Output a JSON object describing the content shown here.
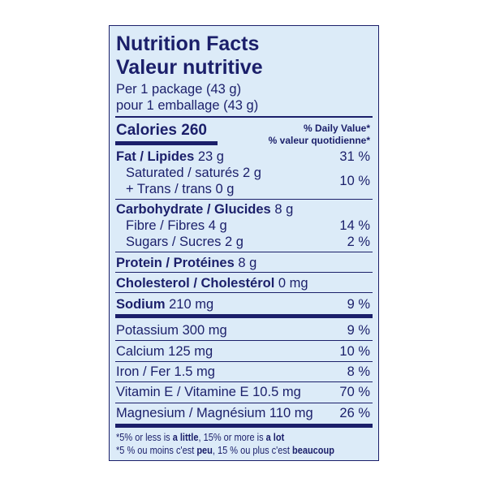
{
  "title_en": "Nutrition Facts",
  "title_fr": "Valeur nutritive",
  "serving_en": "Per 1 package (43 g)",
  "serving_fr": "pour 1 emballage (43 g)",
  "calories_label": "Calories 260",
  "dv_en": "% Daily Value*",
  "dv_fr": "% valeur quotidienne*",
  "fat": {
    "label": "Fat / Lipides",
    "amount": "23 g",
    "dv": "31 %"
  },
  "saturated": {
    "label": "Saturated / saturés 2 g"
  },
  "trans": {
    "label": "+ Trans / trans 0 g"
  },
  "sat_trans_dv": "10 %",
  "carb": {
    "label": "Carbohydrate / Glucides",
    "amount": "8 g"
  },
  "fibre": {
    "label": "Fibre / Fibres 4 g",
    "dv": "14 %"
  },
  "sugars": {
    "label": "Sugars / Sucres 2 g",
    "dv": "2 %"
  },
  "protein": {
    "label": "Protein / Protéines",
    "amount": "8 g"
  },
  "cholesterol": {
    "label": "Cholesterol / Cholestérol",
    "amount": "0 mg"
  },
  "sodium": {
    "label": "Sodium",
    "amount": "210 mg",
    "dv": "9 %"
  },
  "potassium": {
    "label": "Potassium 300 mg",
    "dv": "9 %"
  },
  "calcium": {
    "label": "Calcium 125 mg",
    "dv": "10 %"
  },
  "iron": {
    "label": "Iron / Fer 1.5 mg",
    "dv": "8 %"
  },
  "vitamin_e": {
    "label": "Vitamin E / Vitamine E 10.5 mg",
    "dv": "70 %"
  },
  "magnesium": {
    "label": "Magnesium / Magnésium 110 mg",
    "dv": "26 %"
  },
  "footnote_en": {
    "a": "*5% or less is ",
    "b": "a little",
    "c": ", 15% or more is ",
    "d": "a lot"
  },
  "footnote_fr": {
    "a": "*5 % ou moins c'est ",
    "b": "peu",
    "c": ", 15 % ou plus c'est ",
    "d": "beaucoup"
  },
  "colors": {
    "text": "#1b1f6a",
    "background": "#dcebf8"
  }
}
